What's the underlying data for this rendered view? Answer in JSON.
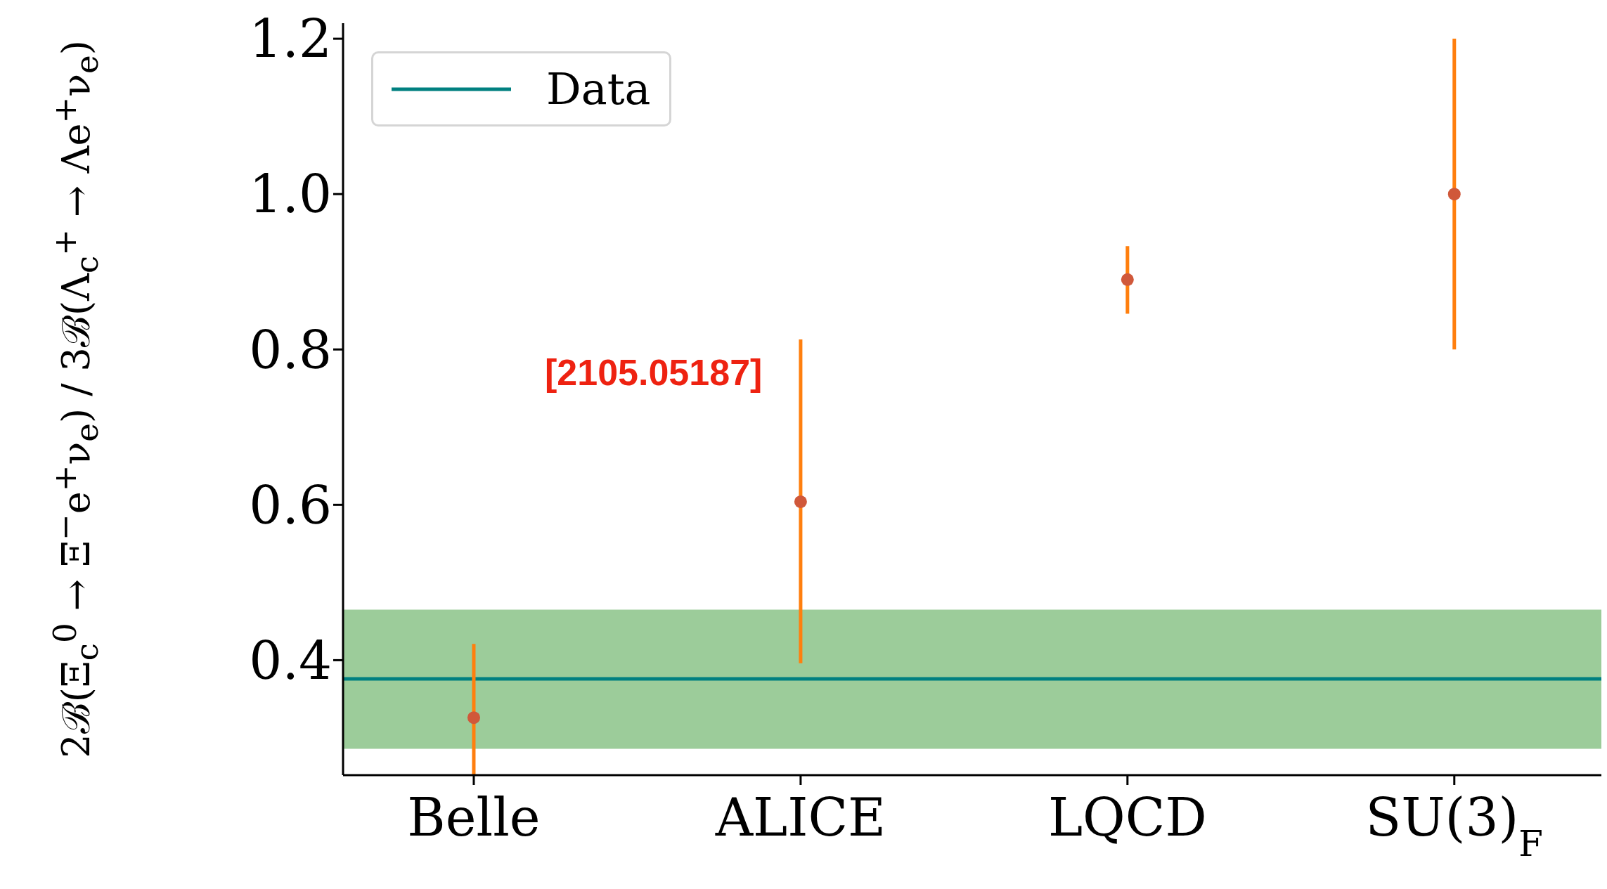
{
  "chart_data": {
    "type": "scatter",
    "ylabel": "2ℬ(Ξ$_{c}$$^{0}$ → Ξ$^{−}$e$^{+}$ν$_{e}$) / 3ℬ(Λ$_{c}$$^{+}$ → Λe$^{+}$ν$_{e}$)",
    "categories": [
      "Belle",
      "ALICE",
      "LQCD",
      "SU(3)$_{F}$"
    ],
    "series": [
      {
        "color": "#d0583a",
        "values": [
          0.326,
          0.604,
          0.89,
          1.0
        ],
        "errors": [
          [
            0.252,
            0.421
          ],
          [
            0.396,
            0.813
          ],
          [
            0.846,
            0.933
          ],
          [
            0.8,
            1.2
          ]
        ]
      }
    ],
    "ylim": [
      0.252,
      1.22
    ],
    "yticks": [
      0.4,
      0.6,
      0.8,
      {
        "value": 1,
        "label": "1.0"
      },
      1.2
    ],
    "ref_lines": [
      {
        "axis": "y",
        "value": 0.376,
        "label": "Data",
        "color": "#008080"
      }
    ],
    "bands": [
      {
        "axis": "y",
        "from": 0.286,
        "to": 0.465,
        "color": "#9ccc9a"
      }
    ],
    "annotations": [
      "[2105.05187]"
    ],
    "legend": "top left",
    "marker": "circle"
  }
}
